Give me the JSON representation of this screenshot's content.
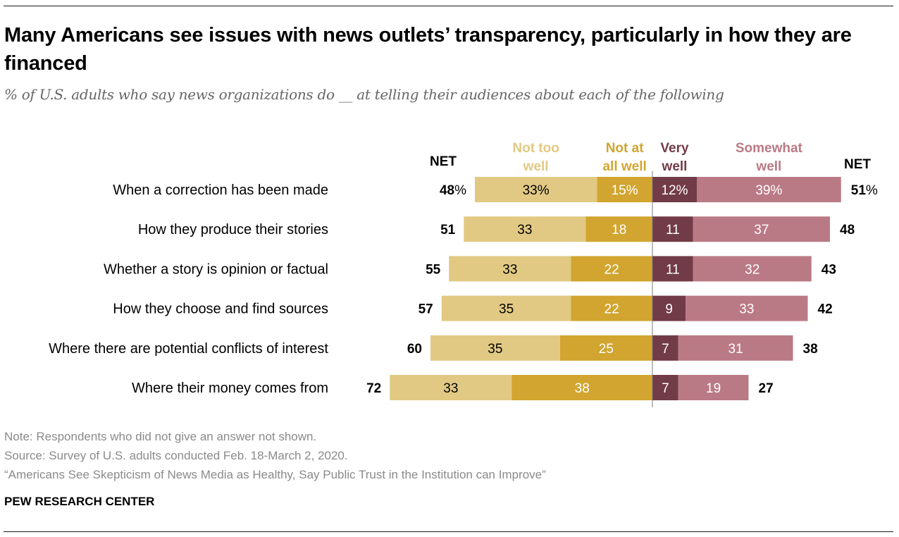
{
  "title": "Many Americans see issues with news outlets’ transparency, particularly in how they are financed",
  "subtitle": "% of U.S. adults who say news organizations do __ at telling their audiences about each of the following",
  "notes": {
    "note": "Note: Respondents who did not give an answer not shown.",
    "source": "Source: Survey of U.S. adults conducted Feb. 18-March 2, 2020.",
    "report": "“Americans See Skepticism of News Media as Healthy, Say Public Trust in the Institution can Improve”",
    "brand": "PEW RESEARCH CENTER"
  },
  "colors": {
    "not_too_well": "#e2c983",
    "not_at_all_well": "#d1a52f",
    "very_well": "#723b48",
    "somewhat_well": "#ba7a85",
    "label_dark": "#000000",
    "label_light": "#ffffff"
  },
  "chart_data": {
    "type": "bar",
    "subtype": "diverging-stacked",
    "title": "Many Americans see issues with news outlets’ transparency, particularly in how they are financed",
    "subtitle": "% of U.S. adults who say news organizations do __ at telling their audiences about each of the following",
    "unit": "%",
    "categories": [
      "When a correction has been made",
      "How they produce their stories",
      "Whether a story is opinion or factual",
      "How they choose and find sources",
      "Where there are potential conflicts of interest",
      "Where their money comes from"
    ],
    "net_header_left": "NET",
    "net_header_right": "NET",
    "series": [
      {
        "name": "Not too well",
        "header": [
          "Not too",
          "well"
        ],
        "side": "negative",
        "order": 2,
        "color": "#e2c983",
        "values": [
          33,
          33,
          33,
          35,
          35,
          33
        ]
      },
      {
        "name": "Not at all well",
        "header": [
          "Not at",
          "all well"
        ],
        "side": "negative",
        "order": 1,
        "color": "#d1a52f",
        "values": [
          15,
          18,
          22,
          22,
          25,
          38
        ]
      },
      {
        "name": "Very well",
        "header": [
          "Very",
          "well"
        ],
        "side": "positive",
        "order": 1,
        "color": "#723b48",
        "values": [
          12,
          11,
          11,
          9,
          7,
          7
        ]
      },
      {
        "name": "Somewhat well",
        "header": [
          "Somewhat",
          "well"
        ],
        "side": "positive",
        "order": 2,
        "color": "#ba7a85",
        "values": [
          39,
          37,
          32,
          33,
          31,
          19
        ]
      }
    ],
    "net_negative": [
      48,
      51,
      55,
      57,
      60,
      72
    ],
    "net_positive": [
      51,
      48,
      43,
      42,
      38,
      27
    ],
    "first_row_shows_percent": true,
    "xlabel": "",
    "ylabel": "",
    "grid": false,
    "legend": "top (column headers above bars)"
  }
}
